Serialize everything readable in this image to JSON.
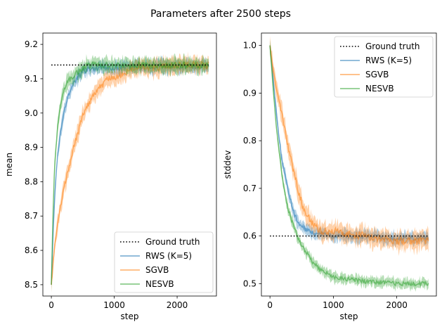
{
  "figure": {
    "suptitle": "Parameters after 2500 steps"
  },
  "colors": {
    "rws": "#1f77b4",
    "sgvb": "#ff7f0e",
    "nesvb": "#2ca02c",
    "ground_truth": "#000000"
  },
  "chart_data": [
    {
      "type": "line",
      "title": "",
      "xlabel": "step",
      "ylabel": "mean",
      "xlim": [
        -135,
        2625
      ],
      "ylim": [
        8.467,
        9.233
      ],
      "xticks": [
        0,
        1000,
        2000
      ],
      "xtick_labels": [
        "0",
        "1000",
        "2000"
      ],
      "yticks": [
        8.5,
        8.6,
        8.7,
        8.8,
        8.9,
        9.0,
        9.1,
        9.2
      ],
      "ytick_labels": [
        "8.5",
        "8.6",
        "8.7",
        "8.8",
        "8.9",
        "9.0",
        "9.1",
        "9.2"
      ],
      "legend_position": "lower-right",
      "ground_truth": {
        "label": "Ground truth",
        "y": 9.14,
        "x_range": [
          0,
          2500
        ]
      },
      "series": [
        {
          "name": "RWS (K=5)",
          "color_key": "rws",
          "band": 0.018,
          "x": [
            0,
            30,
            60,
            100,
            150,
            200,
            250,
            300,
            400,
            500,
            600,
            700,
            800,
            1000,
            1200,
            1500,
            2000,
            2500
          ],
          "values": [
            8.5,
            8.66,
            8.78,
            8.88,
            8.95,
            9.0,
            9.04,
            9.07,
            9.1,
            9.12,
            9.13,
            9.13,
            9.135,
            9.13,
            9.135,
            9.135,
            9.135,
            9.135
          ]
        },
        {
          "name": "SGVB",
          "color_key": "sgvb",
          "band": 0.022,
          "x": [
            0,
            50,
            100,
            200,
            300,
            400,
            500,
            600,
            700,
            800,
            900,
            1000,
            1200,
            1400,
            1600,
            2000,
            2500
          ],
          "values": [
            8.5,
            8.61,
            8.68,
            8.78,
            8.86,
            8.93,
            8.99,
            9.03,
            9.06,
            9.08,
            9.1,
            9.1,
            9.12,
            9.14,
            9.13,
            9.14,
            9.14
          ]
        },
        {
          "name": "NESVB",
          "color_key": "nesvb",
          "band": 0.02,
          "x": [
            0,
            25,
            50,
            100,
            150,
            200,
            250,
            300,
            400,
            500,
            600,
            800,
            1000,
            1500,
            2000,
            2500
          ],
          "values": [
            8.5,
            8.7,
            8.84,
            8.96,
            9.03,
            9.07,
            9.09,
            9.1,
            9.12,
            9.13,
            9.14,
            9.14,
            9.14,
            9.14,
            9.14,
            9.14
          ]
        }
      ]
    },
    {
      "type": "line",
      "title": "",
      "xlabel": "step",
      "ylabel": "stddev",
      "xlim": [
        -135,
        2625
      ],
      "ylim": [
        0.474,
        1.026
      ],
      "xticks": [
        0,
        1000,
        2000
      ],
      "xtick_labels": [
        "0",
        "1000",
        "2000"
      ],
      "yticks": [
        0.5,
        0.6,
        0.7,
        0.8,
        0.9,
        1.0
      ],
      "ytick_labels": [
        "0.5",
        "0.6",
        "0.7",
        "0.8",
        "0.9",
        "1.0"
      ],
      "legend_position": "top-right",
      "ground_truth": {
        "label": "Ground truth",
        "y": 0.6,
        "x_range": [
          0,
          2500
        ]
      },
      "series": [
        {
          "name": "RWS (K=5)",
          "color_key": "rws",
          "band": 0.012,
          "x": [
            0,
            50,
            100,
            150,
            200,
            250,
            300,
            350,
            400,
            500,
            600,
            800,
            1000,
            1500,
            2000,
            2500
          ],
          "values": [
            1.0,
            0.93,
            0.86,
            0.8,
            0.75,
            0.72,
            0.69,
            0.66,
            0.64,
            0.62,
            0.61,
            0.605,
            0.6,
            0.6,
            0.595,
            0.595
          ]
        },
        {
          "name": "SGVB",
          "color_key": "sgvb",
          "band": 0.018,
          "x": [
            0,
            50,
            100,
            150,
            200,
            300,
            400,
            500,
            600,
            700,
            800,
            1000,
            1200,
            1500,
            2000,
            2500
          ],
          "values": [
            1.0,
            0.95,
            0.91,
            0.88,
            0.85,
            0.78,
            0.72,
            0.67,
            0.64,
            0.62,
            0.61,
            0.61,
            0.605,
            0.6,
            0.59,
            0.59
          ]
        },
        {
          "name": "NESVB",
          "color_key": "nesvb",
          "band": 0.01,
          "x": [
            0,
            50,
            100,
            150,
            200,
            250,
            300,
            400,
            500,
            600,
            700,
            800,
            1000,
            1200,
            1500,
            2000,
            2500
          ],
          "values": [
            1.0,
            0.91,
            0.83,
            0.77,
            0.72,
            0.68,
            0.65,
            0.61,
            0.58,
            0.56,
            0.54,
            0.53,
            0.515,
            0.51,
            0.505,
            0.5,
            0.5
          ]
        }
      ]
    }
  ]
}
